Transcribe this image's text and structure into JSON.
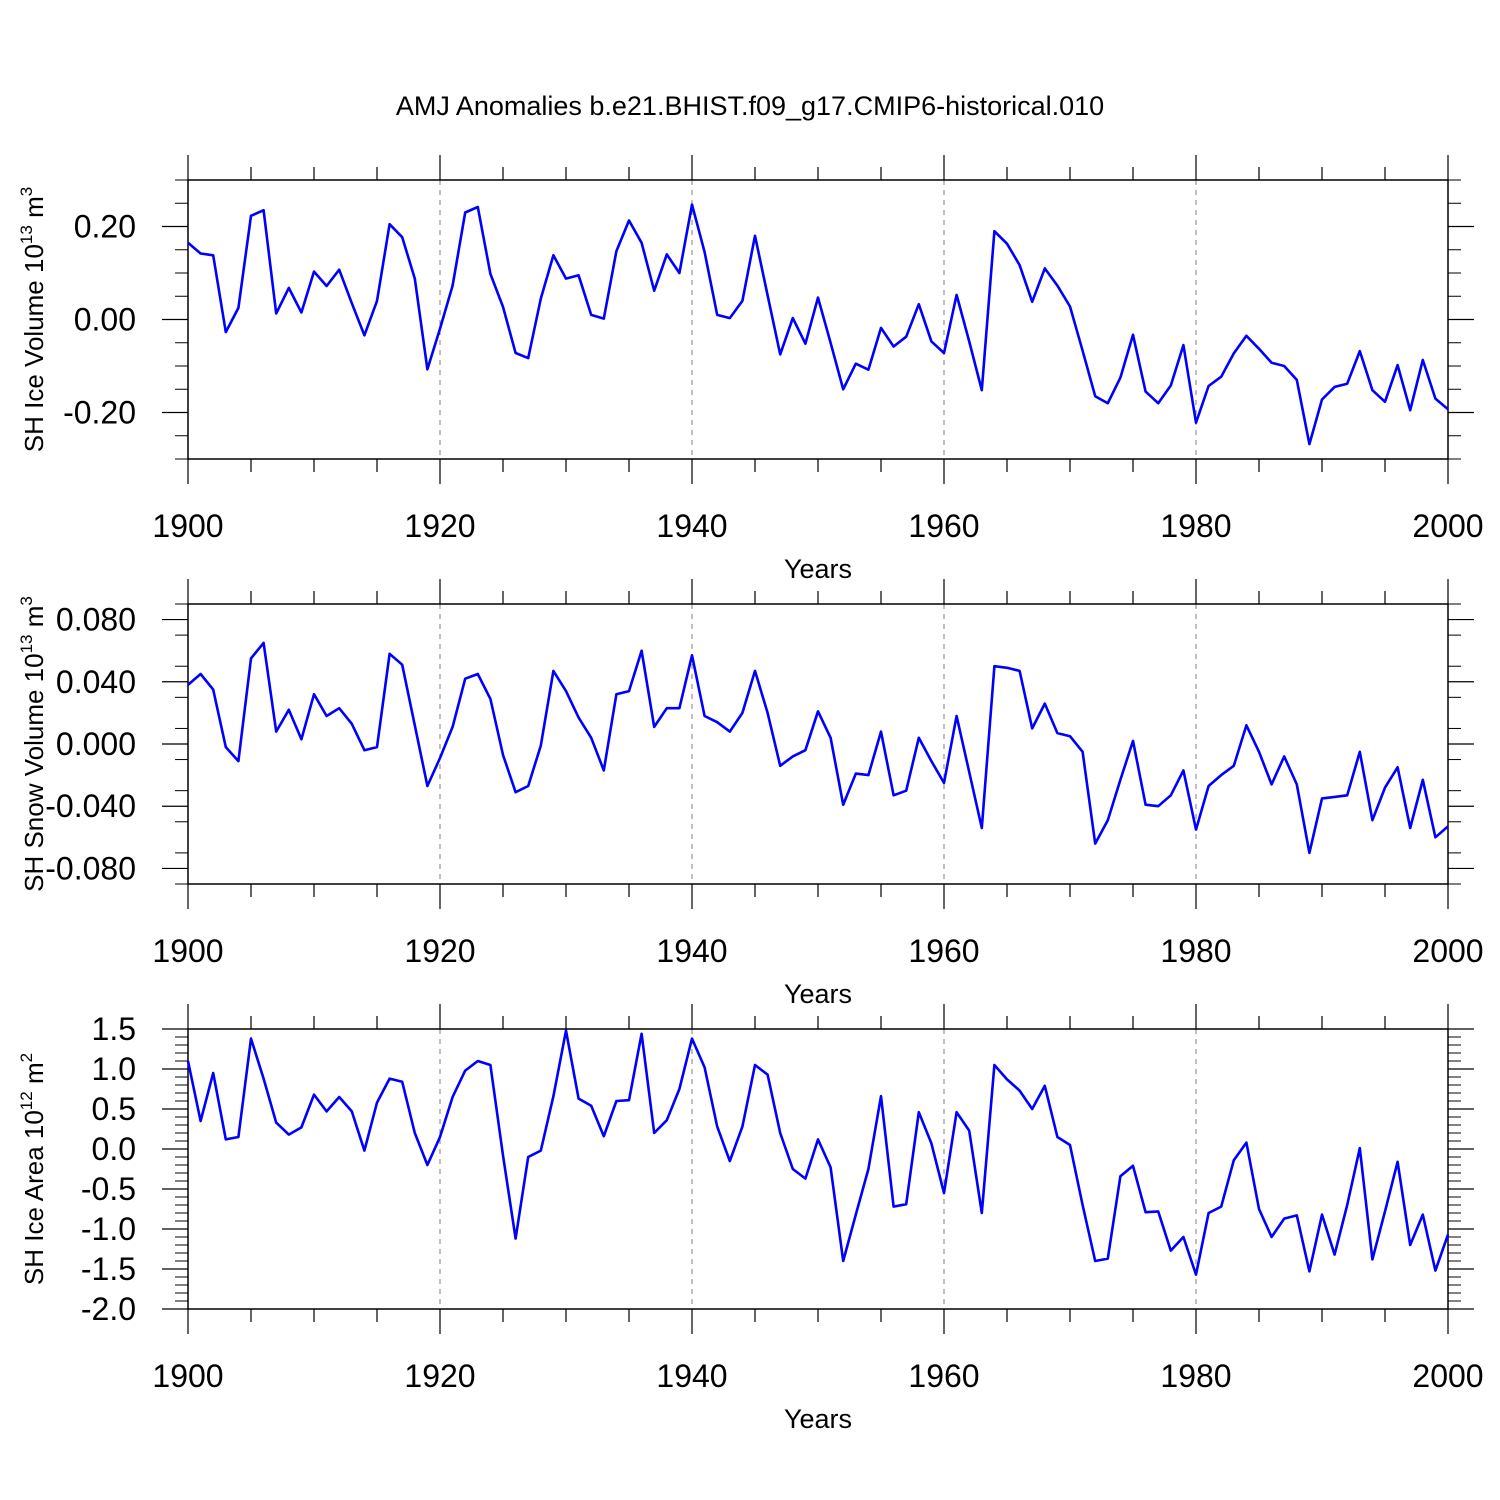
{
  "title": "AMJ Anomalies b.e21.BHIST.f09_g17.CMIP6-historical.010",
  "colors": {
    "series": "#0000ff",
    "axis": "#000000",
    "grid": "#7f7f7f"
  },
  "chart_data": [
    {
      "type": "line",
      "title": "AMJ Anomalies b.e21.BHIST.f09_g17.CMIP6-historical.010",
      "xlabel": "Years",
      "ylabel": {
        "base": "SH Ice Volume 10",
        "exp1": "13",
        "mid": " m",
        "exp2": "3"
      },
      "xlim": [
        1900,
        2000
      ],
      "ylim": [
        -0.3,
        0.3
      ],
      "xticks": [
        1900,
        1920,
        1940,
        1960,
        1980,
        2000
      ],
      "xtick_labels": [
        "1900",
        "1920",
        "1940",
        "1960",
        "1980",
        "2000"
      ],
      "yticks": [
        -0.2,
        0.0,
        0.2
      ],
      "ytick_labels": [
        "-0.20",
        "0.00",
        "0.20"
      ],
      "yminor_step": 0.05,
      "grid_x": [
        1920,
        1940,
        1960,
        1980
      ],
      "x_start": 1900,
      "series": [
        {
          "name": "SH Ice Volume",
          "values": [
            0.165,
            0.142,
            0.138,
            -0.027,
            0.025,
            0.223,
            0.235,
            0.013,
            0.068,
            0.015,
            0.103,
            0.072,
            0.107,
            0.035,
            -0.034,
            0.04,
            0.205,
            0.177,
            0.088,
            -0.107,
            -0.02,
            0.073,
            0.23,
            0.242,
            0.098,
            0.027,
            -0.072,
            -0.083,
            0.045,
            0.138,
            0.088,
            0.095,
            0.01,
            0.002,
            0.147,
            0.213,
            0.165,
            0.062,
            0.14,
            0.1,
            0.247,
            0.145,
            0.01,
            0.003,
            0.04,
            0.18,
            0.052,
            -0.075,
            0.003,
            -0.052,
            0.047,
            -0.05,
            -0.15,
            -0.095,
            -0.108,
            -0.018,
            -0.058,
            -0.037,
            0.033,
            -0.047,
            -0.072,
            0.053,
            -0.047,
            -0.152,
            0.19,
            0.163,
            0.117,
            0.038,
            0.11,
            0.073,
            0.028,
            -0.067,
            -0.165,
            -0.18,
            -0.125,
            -0.033,
            -0.155,
            -0.18,
            -0.142,
            -0.055,
            -0.222,
            -0.143,
            -0.123,
            -0.073,
            -0.035,
            -0.063,
            -0.093,
            -0.1,
            -0.13,
            -0.268,
            -0.172,
            -0.145,
            -0.138,
            -0.068,
            -0.152,
            -0.177,
            -0.098,
            -0.195,
            -0.087,
            -0.17,
            -0.193
          ]
        }
      ]
    },
    {
      "type": "line",
      "title": "",
      "xlabel": "Years",
      "ylabel": {
        "base": "SH Snow Volume 10",
        "exp1": "13",
        "mid": " m",
        "exp2": "3"
      },
      "xlim": [
        1900,
        2000
      ],
      "ylim": [
        -0.09,
        0.09
      ],
      "xticks": [
        1900,
        1920,
        1940,
        1960,
        1980,
        2000
      ],
      "xtick_labels": [
        "1900",
        "1920",
        "1940",
        "1960",
        "1980",
        "2000"
      ],
      "yticks": [
        -0.08,
        -0.04,
        0.0,
        0.04,
        0.08
      ],
      "ytick_labels": [
        "-0.080",
        "-0.040",
        "0.000",
        "0.040",
        "0.080"
      ],
      "yminor_step": 0.02,
      "grid_x": [
        1920,
        1940,
        1960,
        1980
      ],
      "x_start": 1900,
      "series": [
        {
          "name": "SH Snow Volume",
          "values": [
            0.038,
            0.045,
            0.035,
            -0.002,
            -0.011,
            0.055,
            0.065,
            0.008,
            0.022,
            0.003,
            0.032,
            0.018,
            0.023,
            0.013,
            -0.004,
            -0.002,
            0.058,
            0.051,
            0.012,
            -0.027,
            -0.009,
            0.011,
            0.042,
            0.045,
            0.029,
            -0.007,
            -0.031,
            -0.027,
            -0.001,
            0.047,
            0.034,
            0.017,
            0.004,
            -0.017,
            0.032,
            0.034,
            0.06,
            0.011,
            0.023,
            0.023,
            0.057,
            0.018,
            0.014,
            0.008,
            0.02,
            0.047,
            0.02,
            -0.014,
            -0.008,
            -0.004,
            0.021,
            0.004,
            -0.039,
            -0.019,
            -0.02,
            0.008,
            -0.033,
            -0.03,
            0.004,
            -0.011,
            -0.025,
            0.018,
            -0.018,
            -0.054,
            0.05,
            0.049,
            0.047,
            0.01,
            0.026,
            0.007,
            0.005,
            -0.005,
            -0.064,
            -0.049,
            -0.023,
            0.002,
            -0.039,
            -0.04,
            -0.033,
            -0.017,
            -0.055,
            -0.027,
            -0.02,
            -0.014,
            0.012,
            -0.005,
            -0.026,
            -0.008,
            -0.026,
            -0.07,
            -0.035,
            -0.034,
            -0.033,
            -0.005,
            -0.049,
            -0.028,
            -0.015,
            -0.054,
            -0.023,
            -0.06,
            -0.053
          ]
        }
      ]
    },
    {
      "type": "line",
      "title": "",
      "xlabel": "Years",
      "ylabel": {
        "base": "SH Ice Area 10",
        "exp1": "12",
        "mid": " m",
        "exp2": "2"
      },
      "xlim": [
        1900,
        2000
      ],
      "ylim": [
        -2.0,
        1.5
      ],
      "xticks": [
        1900,
        1920,
        1940,
        1960,
        1980,
        2000
      ],
      "xtick_labels": [
        "1900",
        "1920",
        "1940",
        "1960",
        "1980",
        "2000"
      ],
      "yticks": [
        -2.0,
        -1.5,
        -1.0,
        -0.5,
        0.0,
        0.5,
        1.0,
        1.5
      ],
      "ytick_labels": [
        "-2.0",
        "-1.5",
        "-1.0",
        "-0.5",
        "0.0",
        "0.5",
        "1.0",
        "1.5"
      ],
      "yminor_step": 0.1,
      "grid_x": [
        1920,
        1940,
        1960,
        1980
      ],
      "x_start": 1900,
      "series": [
        {
          "name": "SH Ice Area",
          "values": [
            1.1,
            0.35,
            0.95,
            0.12,
            0.15,
            1.38,
            0.88,
            0.33,
            0.18,
            0.27,
            0.68,
            0.47,
            0.65,
            0.47,
            -0.02,
            0.58,
            0.88,
            0.84,
            0.2,
            -0.2,
            0.15,
            0.65,
            0.98,
            1.1,
            1.05,
            -0.08,
            -1.12,
            -0.1,
            -0.02,
            0.66,
            1.48,
            0.63,
            0.54,
            0.16,
            0.6,
            0.61,
            1.44,
            0.2,
            0.36,
            0.75,
            1.38,
            1.02,
            0.28,
            -0.15,
            0.28,
            1.05,
            0.93,
            0.2,
            -0.25,
            -0.37,
            0.12,
            -0.23,
            -1.4,
            -0.82,
            -0.25,
            0.66,
            -0.72,
            -0.69,
            0.46,
            0.07,
            -0.55,
            0.46,
            0.23,
            -0.8,
            1.05,
            0.87,
            0.73,
            0.5,
            0.79,
            0.15,
            0.05,
            -0.7,
            -1.4,
            -1.37,
            -0.34,
            -0.21,
            -0.79,
            -0.78,
            -1.27,
            -1.1,
            -1.57,
            -0.8,
            -0.72,
            -0.14,
            0.08,
            -0.75,
            -1.1,
            -0.87,
            -0.83,
            -1.53,
            -0.82,
            -1.32,
            -0.7,
            0.01,
            -1.38,
            -0.78,
            -0.16,
            -1.2,
            -0.82,
            -1.52,
            -1.07
          ]
        }
      ]
    }
  ]
}
